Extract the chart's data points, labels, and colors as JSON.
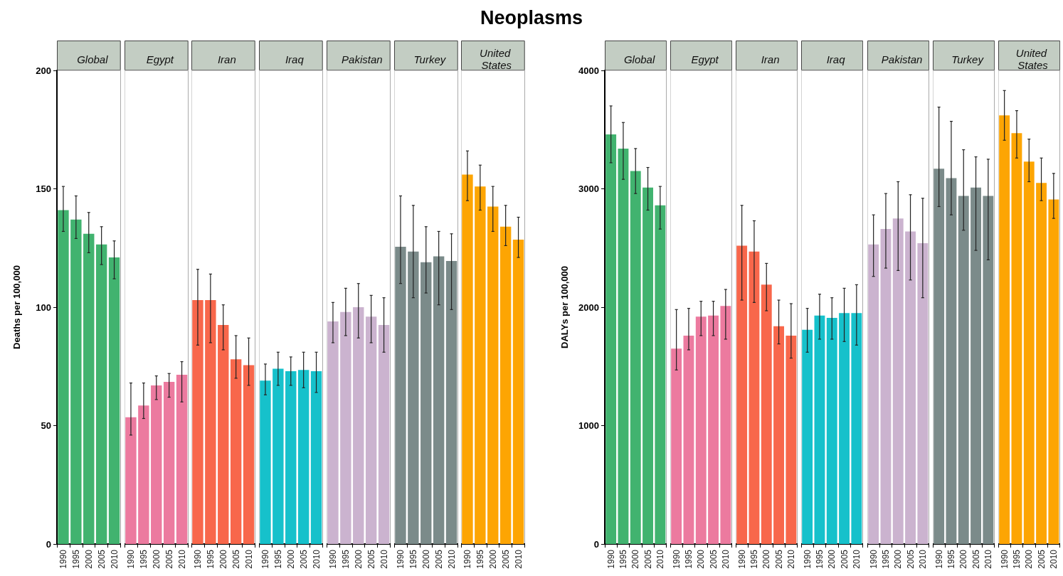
{
  "chart_data": [
    {
      "type": "other",
      "title": "Neoplasms"
    },
    {
      "type": "bar",
      "title": "Global",
      "ylabel": "Deaths per 100,000",
      "categories": [
        "1990",
        "1995",
        "2000",
        "2005",
        "2010"
      ],
      "color": "#41b36f",
      "values": [
        141,
        137,
        131,
        126.5,
        121
      ],
      "errors": [
        [
          132,
          151
        ],
        [
          129,
          147
        ],
        [
          123,
          140
        ],
        [
          118,
          134
        ],
        [
          112,
          128
        ]
      ],
      "ylim": [
        0,
        200
      ],
      "yticks": [
        0,
        50,
        100,
        150,
        200
      ]
    },
    {
      "type": "bar",
      "title": "Egypt",
      "categories": [
        "1990",
        "1995",
        "2000",
        "2005",
        "2010"
      ],
      "color": "#ec7a9f",
      "values": [
        53.5,
        58.5,
        67,
        68.5,
        71.5
      ],
      "errors": [
        [
          46,
          68
        ],
        [
          53,
          68
        ],
        [
          61,
          71
        ],
        [
          62,
          72
        ],
        [
          60,
          77
        ]
      ],
      "ylim": [
        0,
        200
      ],
      "yticks": [
        0,
        50,
        100,
        150,
        200
      ],
      "tick_labels": "x"
    },
    {
      "type": "bar",
      "title": "Iran",
      "categories": [
        "1990",
        "1995",
        "2000",
        "2005",
        "2010"
      ],
      "color": "#f8674b",
      "values": [
        103,
        103,
        92.5,
        78,
        75.5
      ],
      "errors": [
        [
          84,
          116
        ],
        [
          85,
          114
        ],
        [
          82,
          101
        ],
        [
          70,
          88
        ],
        [
          67,
          87
        ]
      ],
      "ylim": [
        0,
        200
      ],
      "yticks": [
        0,
        50,
        100,
        150,
        200
      ],
      "tick_labels": "x"
    },
    {
      "type": "bar",
      "title": "Iraq",
      "categories": [
        "1990",
        "1995",
        "2000",
        "2005",
        "2010"
      ],
      "color": "#16c1cb",
      "values": [
        69,
        74,
        73,
        73.5,
        73
      ],
      "errors": [
        [
          63,
          76
        ],
        [
          67,
          81
        ],
        [
          67,
          79
        ],
        [
          66,
          81
        ],
        [
          64,
          81
        ]
      ],
      "ylim": [
        0,
        200
      ],
      "yticks": [
        0,
        50,
        100,
        150,
        200
      ],
      "tick_labels": "x"
    },
    {
      "type": "bar",
      "title": "Pakistan",
      "categories": [
        "1990",
        "1995",
        "2000",
        "2005",
        "2010"
      ],
      "color": "#cbb3cf",
      "values": [
        94,
        98,
        100,
        96,
        92.5
      ],
      "errors": [
        [
          85,
          102
        ],
        [
          88,
          108
        ],
        [
          87,
          110
        ],
        [
          85,
          105
        ],
        [
          81,
          104
        ]
      ],
      "ylim": [
        0,
        200
      ],
      "yticks": [
        0,
        50,
        100,
        150,
        200
      ],
      "tick_labels": "x"
    },
    {
      "type": "bar",
      "title": "Turkey",
      "categories": [
        "1990",
        "1995",
        "2000",
        "2005",
        "2010"
      ],
      "color": "#7b8b8a",
      "values": [
        125.5,
        123.5,
        119,
        121.5,
        119.5
      ],
      "errors": [
        [
          110,
          147
        ],
        [
          104,
          143
        ],
        [
          106,
          134
        ],
        [
          101,
          132
        ],
        [
          99,
          131
        ]
      ],
      "ylim": [
        0,
        200
      ],
      "yticks": [
        0,
        50,
        100,
        150,
        200
      ],
      "tick_labels": "x"
    },
    {
      "type": "bar",
      "title": "United States",
      "categories": [
        "1990",
        "1995",
        "2000",
        "2005",
        "2010"
      ],
      "color": "#fda503",
      "values": [
        156,
        151,
        142.5,
        134,
        128.5
      ],
      "errors": [
        [
          145,
          166
        ],
        [
          141,
          160
        ],
        [
          132,
          151
        ],
        [
          126,
          143
        ],
        [
          121,
          138
        ]
      ],
      "ylim": [
        0,
        200
      ],
      "yticks": [
        0,
        50,
        100,
        150,
        200
      ],
      "tick_labels": "x"
    },
    {
      "type": "bar",
      "title": "Global",
      "ylabel": "DALYs per 100,000",
      "categories": [
        "1990",
        "1995",
        "2000",
        "2005",
        "2010"
      ],
      "color": "#41b36f",
      "values": [
        3460,
        3340,
        3150,
        3010,
        2860
      ],
      "errors": [
        [
          3220,
          3700
        ],
        [
          3080,
          3560
        ],
        [
          2960,
          3340
        ],
        [
          2820,
          3180
        ],
        [
          2660,
          3020
        ]
      ],
      "ylim": [
        0,
        4000
      ],
      "yticks": [
        0,
        1000,
        2000,
        3000,
        4000
      ]
    },
    {
      "type": "bar",
      "title": "Egypt",
      "categories": [
        "1990",
        "1995",
        "2000",
        "2005",
        "2010"
      ],
      "color": "#ec7a9f",
      "values": [
        1650,
        1760,
        1920,
        1930,
        2010
      ],
      "errors": [
        [
          1470,
          1980
        ],
        [
          1640,
          1990
        ],
        [
          1760,
          2050
        ],
        [
          1760,
          2050
        ],
        [
          1730,
          2150
        ]
      ],
      "ylim": [
        0,
        4000
      ],
      "yticks": [
        0,
        1000,
        2000,
        3000,
        4000
      ],
      "tick_labels": "x"
    },
    {
      "type": "bar",
      "title": "Iran",
      "categories": [
        "1990",
        "1995",
        "2000",
        "2005",
        "2010"
      ],
      "color": "#f8674b",
      "values": [
        2520,
        2470,
        2190,
        1840,
        1760
      ],
      "errors": [
        [
          2060,
          2860
        ],
        [
          2040,
          2730
        ],
        [
          1970,
          2370
        ],
        [
          1690,
          2060
        ],
        [
          1570,
          2030
        ]
      ],
      "ylim": [
        0,
        4000
      ],
      "yticks": [
        0,
        1000,
        2000,
        3000,
        4000
      ],
      "tick_labels": "x"
    },
    {
      "type": "bar",
      "title": "Iraq",
      "categories": [
        "1990",
        "1995",
        "2000",
        "2005",
        "2010"
      ],
      "color": "#16c1cb",
      "values": [
        1810,
        1930,
        1910,
        1950,
        1950
      ],
      "errors": [
        [
          1620,
          1990
        ],
        [
          1730,
          2110
        ],
        [
          1730,
          2080
        ],
        [
          1710,
          2160
        ],
        [
          1680,
          2190
        ]
      ],
      "ylim": [
        0,
        4000
      ],
      "yticks": [
        0,
        1000,
        2000,
        3000,
        4000
      ],
      "tick_labels": "x"
    },
    {
      "type": "bar",
      "title": "Pakistan",
      "categories": [
        "1990",
        "1995",
        "2000",
        "2005",
        "2010"
      ],
      "color": "#cbb3cf",
      "values": [
        2530,
        2660,
        2750,
        2640,
        2540
      ],
      "errors": [
        [
          2260,
          2780
        ],
        [
          2330,
          2960
        ],
        [
          2310,
          3060
        ],
        [
          2230,
          2950
        ],
        [
          2080,
          2920
        ]
      ],
      "ylim": [
        0,
        4000
      ],
      "yticks": [
        0,
        1000,
        2000,
        3000,
        4000
      ],
      "tick_labels": "x"
    },
    {
      "type": "bar",
      "title": "Turkey",
      "categories": [
        "1990",
        "1995",
        "2000",
        "2005",
        "2010"
      ],
      "color": "#7b8b8a",
      "values": [
        3170,
        3090,
        2940,
        3010,
        2940
      ],
      "errors": [
        [
          2850,
          3690
        ],
        [
          2780,
          3570
        ],
        [
          2650,
          3330
        ],
        [
          2480,
          3270
        ],
        [
          2400,
          3250
        ]
      ],
      "ylim": [
        0,
        4000
      ],
      "yticks": [
        0,
        1000,
        2000,
        3000,
        4000
      ],
      "tick_labels": "x"
    },
    {
      "type": "bar",
      "title": "United States",
      "categories": [
        "1990",
        "1995",
        "2000",
        "2005",
        "2010"
      ],
      "color": "#fda503",
      "values": [
        3620,
        3470,
        3230,
        3050,
        2910
      ],
      "errors": [
        [
          3410,
          3830
        ],
        [
          3260,
          3660
        ],
        [
          3060,
          3420
        ],
        [
          2900,
          3260
        ],
        [
          2750,
          3130
        ]
      ],
      "ylim": [
        0,
        4000
      ],
      "yticks": [
        0,
        1000,
        2000,
        3000,
        4000
      ],
      "tick_labels": "x"
    }
  ]
}
